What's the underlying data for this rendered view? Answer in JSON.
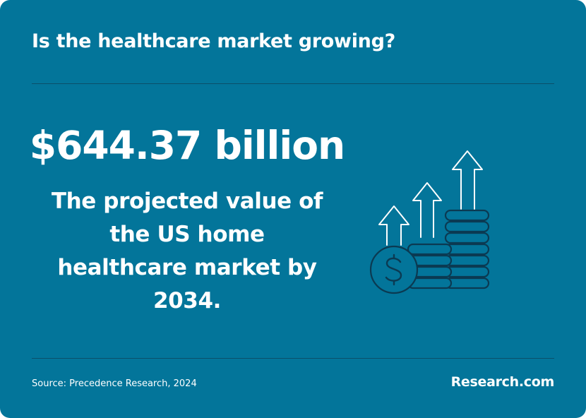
{
  "header": {
    "title": "Is the healthcare market growing?"
  },
  "main": {
    "stat_value": "$644.37 billion",
    "stat_description": "The projected value of the US home healthcare market by 2034.",
    "illustration_icon": "coin-stacks-growth-arrows-icon"
  },
  "footer": {
    "source": "Source: Precedence Research, 2024",
    "brand": "Research.com"
  },
  "colors": {
    "background": "#03759A",
    "text": "#FFFFFF",
    "icon_stroke": "#0B3A52",
    "divider": "#0A4F6A"
  }
}
